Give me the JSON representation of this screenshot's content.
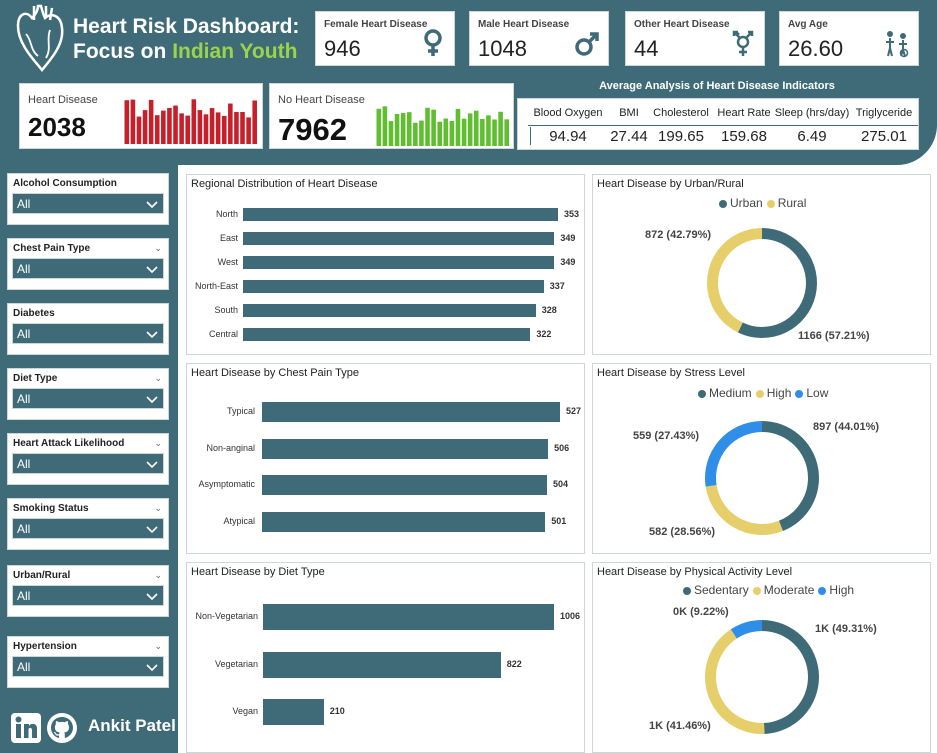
{
  "header": {
    "title_line1": "Heart Risk Dashboard:",
    "title_line2_prefix": "Focus on",
    "title_line2_accent": "Indian Youth"
  },
  "colors": {
    "primary": "#3f6b78",
    "accent_green": "#9bd34a",
    "heart_red": "#c8202a",
    "no_heart_green": "#5fbf2f",
    "donut_yellow": "#e6cf6a",
    "donut_blue": "#2f8fe8",
    "donut_teal": "#3f6b78"
  },
  "kpis": {
    "female": {
      "label": "Female Heart Disease",
      "value": "946",
      "icon": "female-icon"
    },
    "male": {
      "label": "Male Heart Disease",
      "value": "1048",
      "icon": "male-icon"
    },
    "other": {
      "label": "Other Heart Disease",
      "value": "44",
      "icon": "transgender-icon"
    },
    "age": {
      "label": "Avg Age",
      "value": "26.60",
      "icon": "age-icon"
    }
  },
  "heart_disease": {
    "label": "Heart Disease",
    "value": "2038"
  },
  "no_heart_disease": {
    "label": "No Heart Disease",
    "value": "7962"
  },
  "averages": {
    "title": "Average Analysis of Heart Disease Indicators",
    "columns": [
      {
        "label": "Blood Oxygen",
        "value": "94.94"
      },
      {
        "label": "BMI",
        "value": "27.44"
      },
      {
        "label": "Cholesterol",
        "value": "199.65"
      },
      {
        "label": "Heart Rate",
        "value": "159.68"
      },
      {
        "label": "Sleep (hrs/day)",
        "value": "6.49"
      },
      {
        "label": "Triglyceride",
        "value": "275.01"
      }
    ]
  },
  "filters": [
    {
      "label": "Alcohol Consumption",
      "value": "All"
    },
    {
      "label": "Chest Pain Type",
      "value": "All"
    },
    {
      "label": "Diabetes",
      "value": "All"
    },
    {
      "label": "Diet Type",
      "value": "All"
    },
    {
      "label": "Heart Attack Likelihood",
      "value": "All"
    },
    {
      "label": "Smoking Status",
      "value": "All"
    },
    {
      "label": "Urban/Rural",
      "value": "All"
    },
    {
      "label": "Hypertension",
      "value": "All"
    }
  ],
  "footer": {
    "name": "Ankit Patel"
  },
  "chart_data": [
    {
      "type": "bar",
      "orientation": "horizontal",
      "title": "Regional Distribution of Heart Disease",
      "categories": [
        "North",
        "East",
        "West",
        "North-East",
        "South",
        "Central"
      ],
      "values": [
        353,
        349,
        349,
        337,
        328,
        322
      ],
      "value_labels": [
        "353",
        "349",
        "349",
        "337",
        "328",
        "322"
      ]
    },
    {
      "type": "bar",
      "orientation": "horizontal",
      "title": "Heart Disease by Chest Pain Type",
      "categories": [
        "Typical",
        "Non-anginal",
        "Asymptomatic",
        "Atypical"
      ],
      "values": [
        527,
        506,
        504,
        501
      ],
      "value_labels": [
        "527",
        "506",
        "504",
        "501"
      ]
    },
    {
      "type": "bar",
      "orientation": "horizontal",
      "title": "Heart Disease by Diet Type",
      "categories": [
        "Non-Vegetarian",
        "Vegetarian",
        "Vegan"
      ],
      "values": [
        1006,
        822,
        210
      ],
      "value_labels": [
        "1006",
        "822",
        "210"
      ]
    },
    {
      "type": "pie",
      "title": "Heart Disease by Urban/Rural",
      "legend_position": "top",
      "categories": [
        "Urban",
        "Rural"
      ],
      "values": [
        1166,
        872
      ],
      "colors": [
        "#3f6b78",
        "#e6cf6a"
      ],
      "data_labels": [
        "1166 (57.21%)",
        "872 (42.79%)"
      ]
    },
    {
      "type": "pie",
      "title": "Heart Disease by Stress Level",
      "legend_position": "top",
      "categories": [
        "Medium",
        "High",
        "Low"
      ],
      "values": [
        897,
        582,
        559
      ],
      "colors": [
        "#3f6b78",
        "#e6cf6a",
        "#2f8fe8"
      ],
      "data_labels": [
        "897 (44.01%)",
        "582 (28.56%)",
        "559 (27.43%)"
      ]
    },
    {
      "type": "pie",
      "title": "Heart Disease by Physical Activity Level",
      "legend_position": "top",
      "categories": [
        "Sedentary",
        "Moderate",
        "High"
      ],
      "values": [
        49.31,
        41.46,
        9.22
      ],
      "colors": [
        "#3f6b78",
        "#e6cf6a",
        "#2f8fe8"
      ],
      "data_labels": [
        "1K (49.31%)",
        "1K (41.46%)",
        "0K (9.22%)"
      ]
    }
  ]
}
